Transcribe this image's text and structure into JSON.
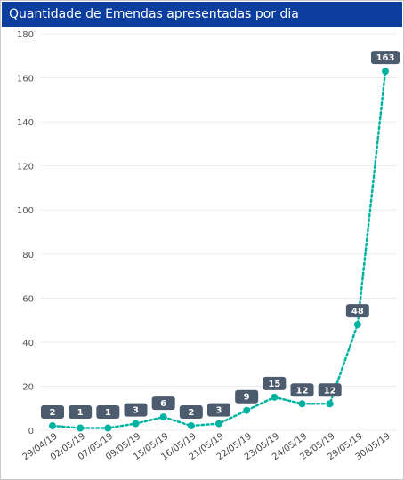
{
  "title": "Quantidade de Emendas apresentadas por dia",
  "colors": {
    "title_bg": "#0b3e9f",
    "line": "#00b3a1",
    "label_bg": "#4d5b6e",
    "grid": "#ededed"
  },
  "chart_data": {
    "type": "line",
    "title": "Quantidade de Emendas apresentadas por dia",
    "categories": [
      "29/04/19",
      "02/05/19",
      "07/05/19",
      "09/05/19",
      "15/05/19",
      "16/05/19",
      "21/05/19",
      "22/05/19",
      "23/05/19",
      "24/05/19",
      "28/05/19",
      "29/05/19",
      "30/05/19"
    ],
    "values": [
      2,
      1,
      1,
      3,
      6,
      2,
      3,
      9,
      15,
      12,
      12,
      48,
      163
    ],
    "ylim": [
      0,
      180
    ],
    "yticks": [
      0,
      20,
      40,
      60,
      80,
      100,
      120,
      140,
      160,
      180
    ],
    "xlabel": "",
    "ylabel": "",
    "grid": true,
    "line_style": "dotted",
    "data_labels": true
  }
}
